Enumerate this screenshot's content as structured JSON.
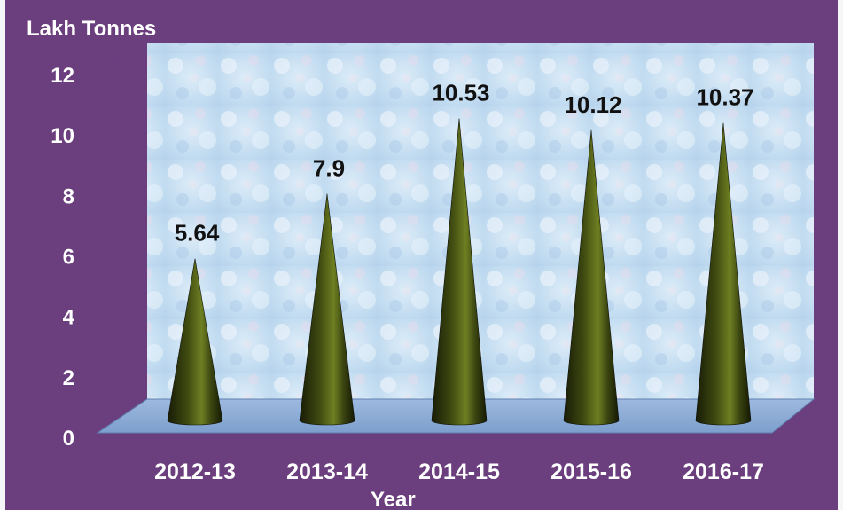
{
  "chart_data": {
    "type": "bar",
    "categories": [
      "2012-13",
      "2013-14",
      "2014-15",
      "2015-16",
      "2016-17"
    ],
    "values": [
      5.64,
      7.9,
      10.53,
      10.12,
      10.37
    ],
    "data_labels": [
      "5.64",
      "7.9",
      "10.53",
      "10.12",
      "10.37"
    ],
    "ylabel": "Lakh Tonnes",
    "xlabel": "Year",
    "ylim": [
      0,
      12
    ],
    "yticks": [
      "0",
      "2",
      "4",
      "6",
      "8",
      "10",
      "12"
    ],
    "bar_shape": "cone",
    "legend": "none",
    "grid": false,
    "colors": {
      "background": "#6b3f7e",
      "plot_wall": "#cfe3f3",
      "floor": "#8fb0d8",
      "bar_dark": "#1e2408",
      "bar_light": "#6a7a20",
      "text": "#ffffff",
      "data_label": "#111111"
    }
  }
}
